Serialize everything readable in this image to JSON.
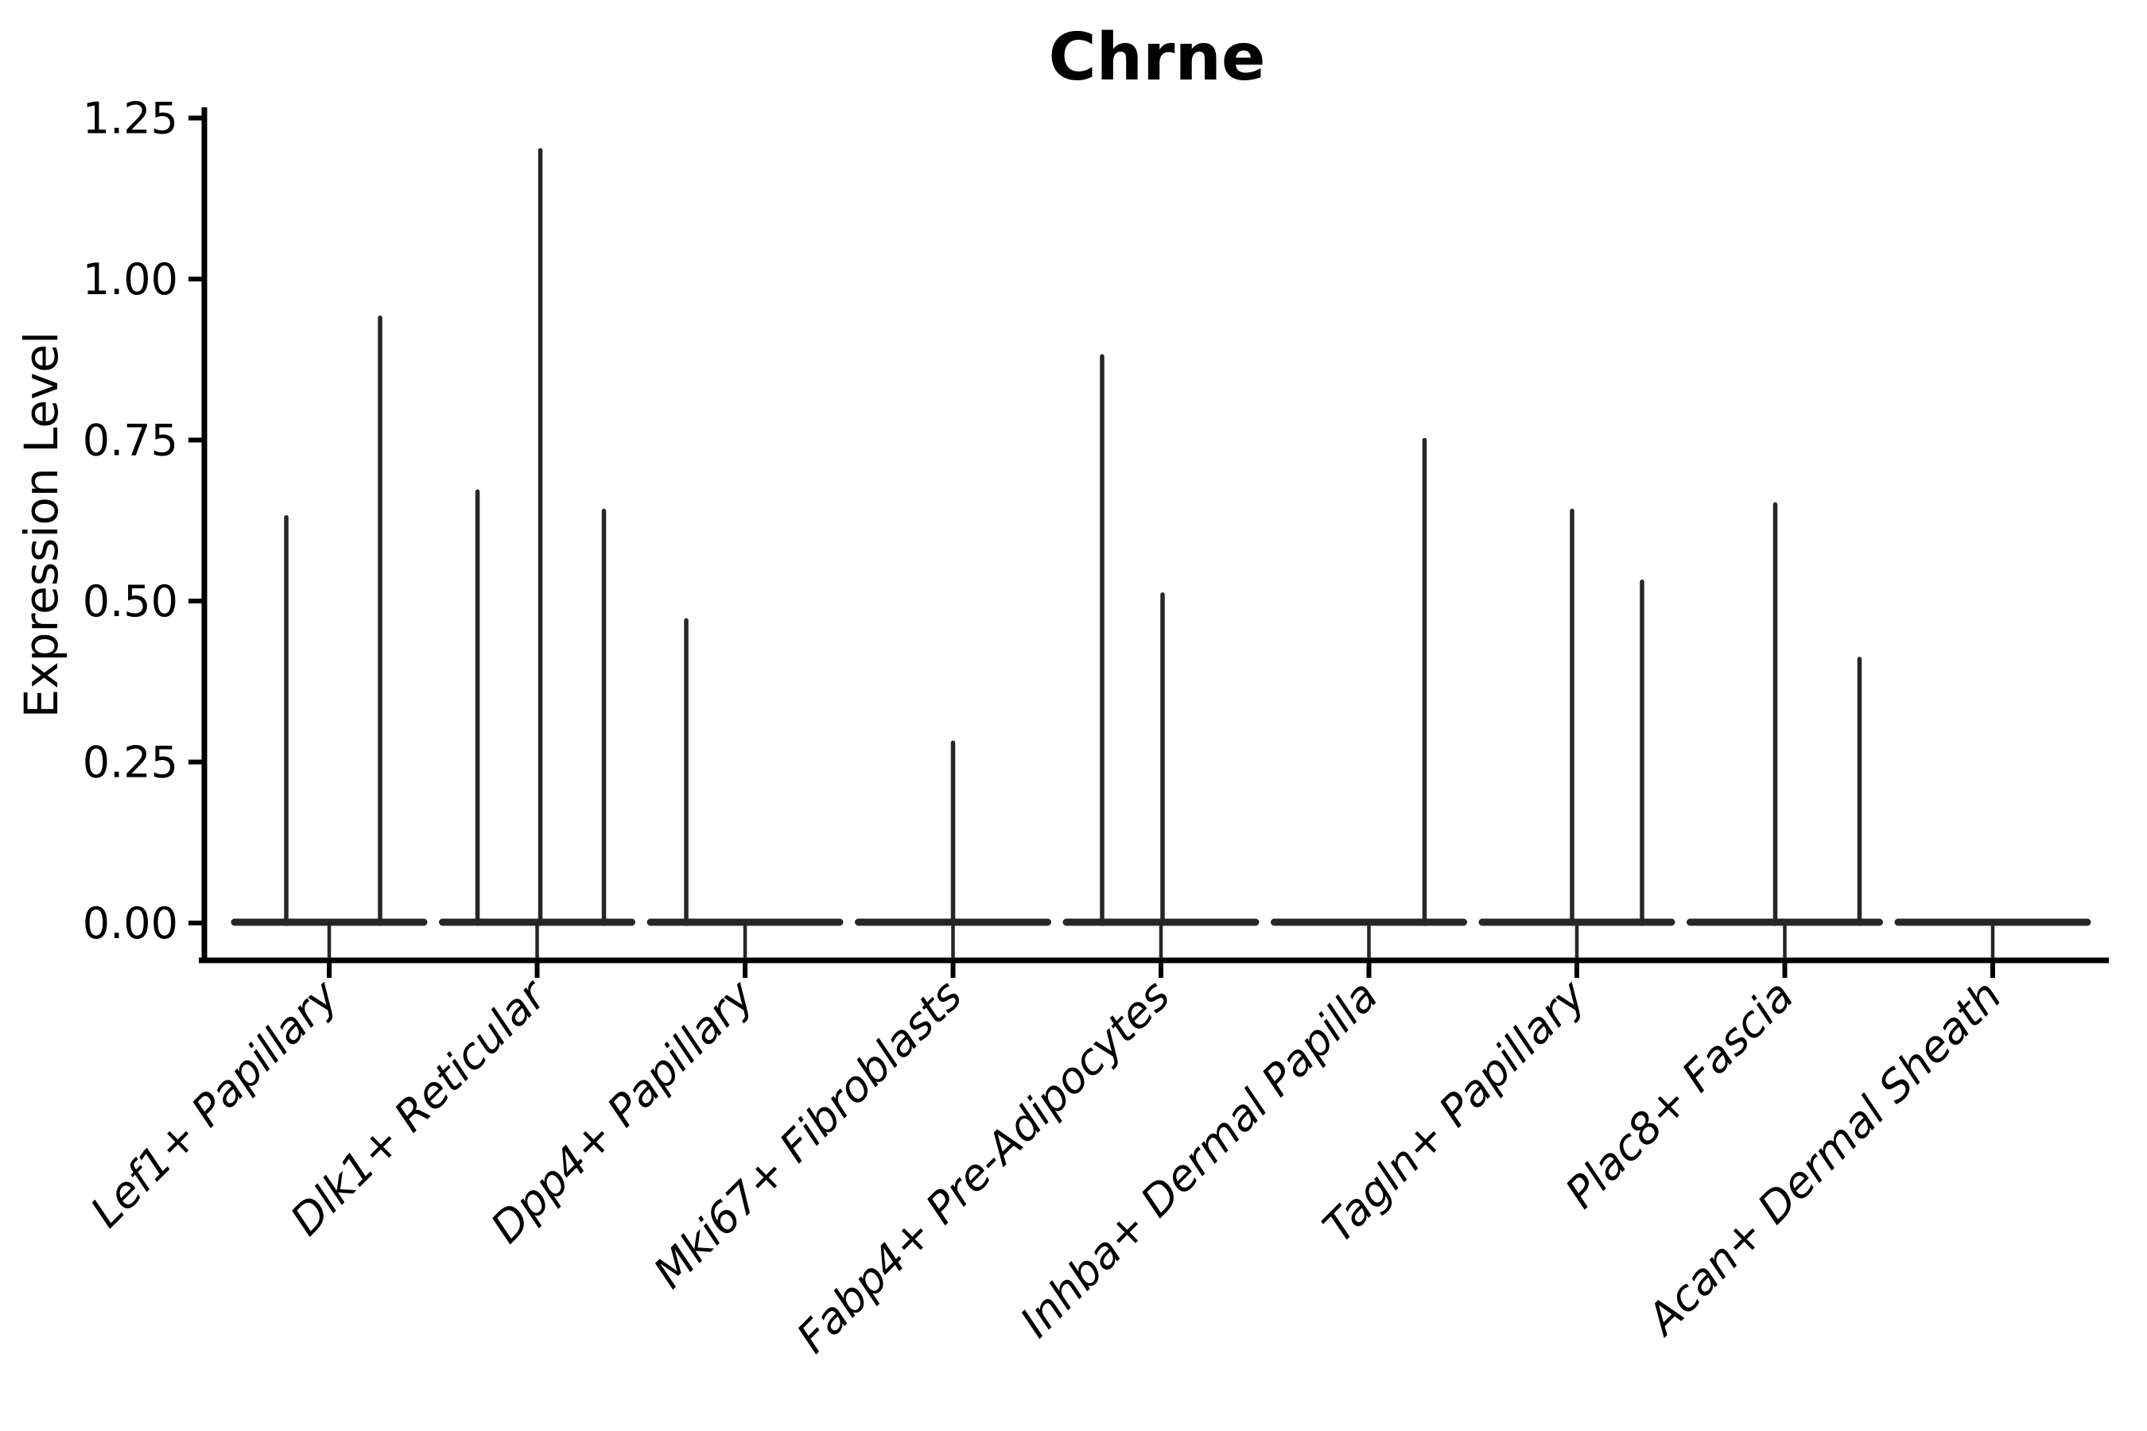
{
  "figure": {
    "title": "Chrne",
    "y_axis_label": "Expression Level"
  },
  "chart_data": {
    "type": "violin",
    "title": "Chrne",
    "xlabel": "",
    "ylabel": "Expression Level",
    "ylim": [
      0,
      1.25
    ],
    "grid": false,
    "legend": null,
    "x_tick_rotation_deg": 45,
    "ytick_labels": [
      "0.00",
      "0.25",
      "0.50",
      "0.75",
      "1.00",
      "1.25"
    ],
    "yticks": [
      0.0,
      0.25,
      0.5,
      0.75,
      1.0,
      1.25
    ],
    "categories": [
      "Lef1+ Papillary",
      "Dlk1+ Reticular",
      "Dpp4+ Papillary",
      "Mki67+ Fibroblasts",
      "Fabp4+ Pre-Adipocytes",
      "Inhba+ Dermal Papilla",
      "Tagln+ Papillary",
      "Plac8+ Fascia",
      "Acan+ Dermal Sheath"
    ],
    "violins": [
      {
        "category": "Lef1+ Papillary",
        "body_value": 0.0,
        "max_spikes": [
          {
            "offset": -54,
            "value": 0.63
          },
          {
            "offset": 64,
            "value": 0.94
          }
        ]
      },
      {
        "category": "Dlk1+ Reticular",
        "body_value": 0.0,
        "max_spikes": [
          {
            "offset": -75,
            "value": 0.67
          },
          {
            "offset": 4,
            "value": 1.2
          },
          {
            "offset": 84,
            "value": 0.64
          }
        ]
      },
      {
        "category": "Dpp4+ Papillary",
        "body_value": 0.0,
        "max_spikes": [
          {
            "offset": -74,
            "value": 0.47
          }
        ]
      },
      {
        "category": "Mki67+ Fibroblasts",
        "body_value": 0.0,
        "max_spikes": [
          {
            "offset": 0,
            "value": 0.28
          }
        ]
      },
      {
        "category": "Fabp4+ Pre-Adipocytes",
        "body_value": 0.0,
        "max_spikes": [
          {
            "offset": -74,
            "value": 0.88
          },
          {
            "offset": 2,
            "value": 0.51
          }
        ]
      },
      {
        "category": "Inhba+ Dermal Papilla",
        "body_value": 0.0,
        "max_spikes": [
          {
            "offset": 70,
            "value": 0.75
          }
        ]
      },
      {
        "category": "Tagln+ Papillary",
        "body_value": 0.0,
        "max_spikes": [
          {
            "offset": -6,
            "value": 0.64
          },
          {
            "offset": 82,
            "value": 0.53
          }
        ]
      },
      {
        "category": "Plac8+ Fascia",
        "body_value": 0.0,
        "max_spikes": [
          {
            "offset": -12,
            "value": 0.65
          },
          {
            "offset": 94,
            "value": 0.41
          }
        ]
      },
      {
        "category": "Acan+ Dermal Sheath",
        "body_value": 0.0,
        "max_spikes": []
      }
    ],
    "style": {
      "background_color": "#ffffff",
      "violin_ink_color": "#262626",
      "axis_color": "#000000",
      "text_color": "#000000"
    }
  }
}
